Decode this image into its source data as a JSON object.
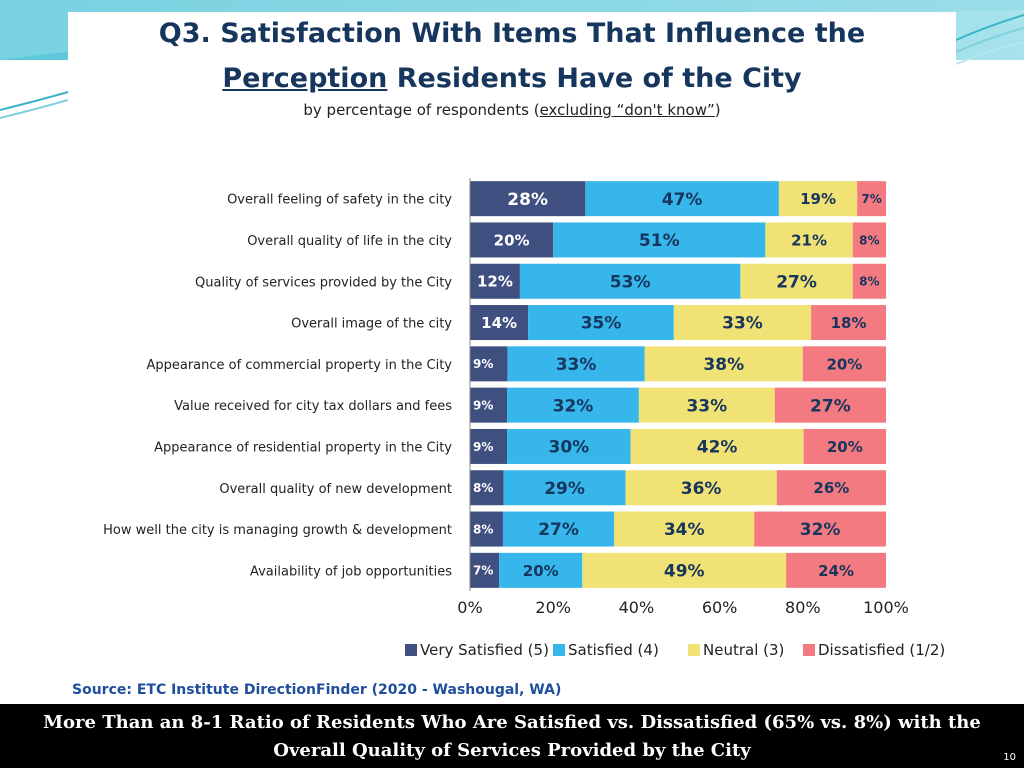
{
  "header": {
    "title_prefix": "Q3. Satisfaction With Items That Influence the",
    "title_underlined": "Perception",
    "title_suffix": " Residents Have of the City",
    "subtitle_prefix": "by percentage of respondents (",
    "subtitle_underlined": "excluding “don't know”",
    "subtitle_suffix": ")"
  },
  "chart_data": {
    "type": "bar",
    "orientation": "horizontal-stacked-100",
    "categories": [
      "Overall feeling of safety in the city",
      "Overall quality of life in the city",
      "Quality of services provided by the City",
      "Overall image of the city",
      "Appearance of commercial property in the City",
      "Value received for city tax dollars and fees",
      "Appearance of residential property in the City",
      "Overall quality of new development",
      "How well the city is managing growth & development",
      "Availability of job opportunities"
    ],
    "series": [
      {
        "name": "Very Satisfied (5)",
        "color": "#3f4f7f",
        "values": [
          28,
          20,
          12,
          14,
          9,
          9,
          9,
          8,
          8,
          7
        ]
      },
      {
        "name": "Satisfied (4)",
        "color": "#36b6ea",
        "values": [
          47,
          51,
          53,
          35,
          33,
          32,
          30,
          29,
          27,
          20
        ]
      },
      {
        "name": "Neutral (3)",
        "color": "#f0e274",
        "values": [
          19,
          21,
          27,
          33,
          38,
          33,
          42,
          36,
          34,
          49
        ]
      },
      {
        "name": "Dissatisfied (1/2)",
        "color": "#f37a80",
        "values": [
          7,
          8,
          8,
          18,
          20,
          27,
          20,
          26,
          32,
          24
        ]
      }
    ],
    "label_suffix": "%",
    "x_ticks": [
      "0%",
      "20%",
      "40%",
      "60%",
      "80%",
      "100%"
    ],
    "xlim": [
      0,
      100
    ],
    "grid": false,
    "legend_position": "bottom"
  },
  "source": "Source:  ETC Institute DirectionFinder (2020 - Washougal, WA)",
  "footer": {
    "line1": "More Than an 8-1 Ratio of Residents Who Are Satisfied vs. Dissatisfied (65% vs. 8%) with the",
    "line2": "Overall Quality of Services Provided by the City"
  },
  "page_number": "10"
}
